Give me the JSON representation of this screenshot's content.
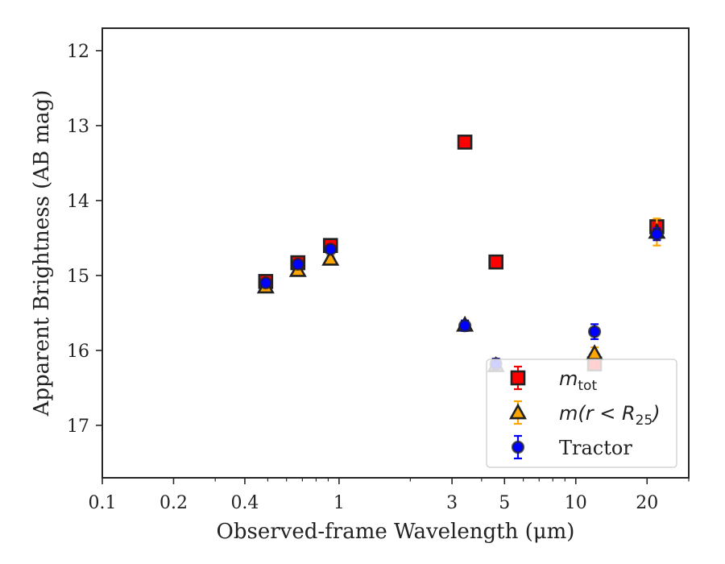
{
  "chart_data": {
    "type": "scatter",
    "xlabel": "Observed-frame Wavelength (μm)",
    "ylabel": "Apparent Brightness (AB mag)",
    "xscale": "log",
    "yscale": "linear",
    "yinverted": true,
    "xlim": [
      0.1,
      30
    ],
    "ylim": [
      17.7,
      11.7
    ],
    "xticks": [
      {
        "value": 0.1,
        "label": "0.1"
      },
      {
        "value": 0.2,
        "label": "0.2"
      },
      {
        "value": 0.4,
        "label": "0.4"
      },
      {
        "value": 1,
        "label": "1"
      },
      {
        "value": 3,
        "label": "3"
      },
      {
        "value": 5,
        "label": "5"
      },
      {
        "value": 10,
        "label": "10"
      },
      {
        "value": 20,
        "label": "20"
      }
    ],
    "yticks": [
      {
        "value": 12,
        "label": "12"
      },
      {
        "value": 13,
        "label": "13"
      },
      {
        "value": 14,
        "label": "14"
      },
      {
        "value": 15,
        "label": "15"
      },
      {
        "value": 16,
        "label": "16"
      },
      {
        "value": 17,
        "label": "17"
      }
    ],
    "grid": false,
    "legend_position": "bottom-right",
    "series": [
      {
        "name": "m_tot",
        "legend_main": "m",
        "legend_sub": "tot",
        "marker": "square",
        "color": "#ff0000",
        "errcolor": "#ee0000",
        "points": [
          {
            "x": 0.49,
            "y": 15.08,
            "err": 0.05
          },
          {
            "x": 0.67,
            "y": 14.83,
            "err": 0.05
          },
          {
            "x": 0.92,
            "y": 14.6,
            "err": 0.05
          },
          {
            "x": 3.4,
            "y": 13.22,
            "err": 0.06
          },
          {
            "x": 4.6,
            "y": 14.82,
            "err": 0.05
          },
          {
            "x": 12.0,
            "y": 16.18,
            "err": 0.06
          },
          {
            "x": 22.0,
            "y": 14.35,
            "err": 0.1
          }
        ]
      },
      {
        "name": "m(r < R_25)",
        "legend_main": "m(r < R",
        "legend_sub": "25",
        "legend_tail": ")",
        "marker": "triangle",
        "color": "#ffa500",
        "errcolor": "#ffa500",
        "points": [
          {
            "x": 0.49,
            "y": 15.15,
            "err": 0.04
          },
          {
            "x": 0.67,
            "y": 14.93,
            "err": 0.04
          },
          {
            "x": 0.92,
            "y": 14.78,
            "err": 0.04
          },
          {
            "x": 3.4,
            "y": 15.66,
            "err": 0.05
          },
          {
            "x": 4.6,
            "y": 16.2,
            "err": 0.06
          },
          {
            "x": 12.0,
            "y": 16.04,
            "err": 0.08
          },
          {
            "x": 22.0,
            "y": 14.42,
            "err": 0.18
          }
        ]
      },
      {
        "name": "Tractor",
        "legend_main": "Tractor",
        "marker": "circle",
        "color": "#0000ff",
        "errcolor": "#0000ff",
        "points": [
          {
            "x": 0.49,
            "y": 15.1,
            "err": 0.04
          },
          {
            "x": 0.67,
            "y": 14.85,
            "err": 0.04
          },
          {
            "x": 0.92,
            "y": 14.65,
            "err": 0.04
          },
          {
            "x": 3.4,
            "y": 15.67,
            "err": 0.07
          },
          {
            "x": 4.6,
            "y": 16.18,
            "err": 0.07
          },
          {
            "x": 12.0,
            "y": 15.75,
            "err": 0.1
          },
          {
            "x": 22.0,
            "y": 14.45,
            "err": 0.08
          }
        ]
      }
    ]
  }
}
